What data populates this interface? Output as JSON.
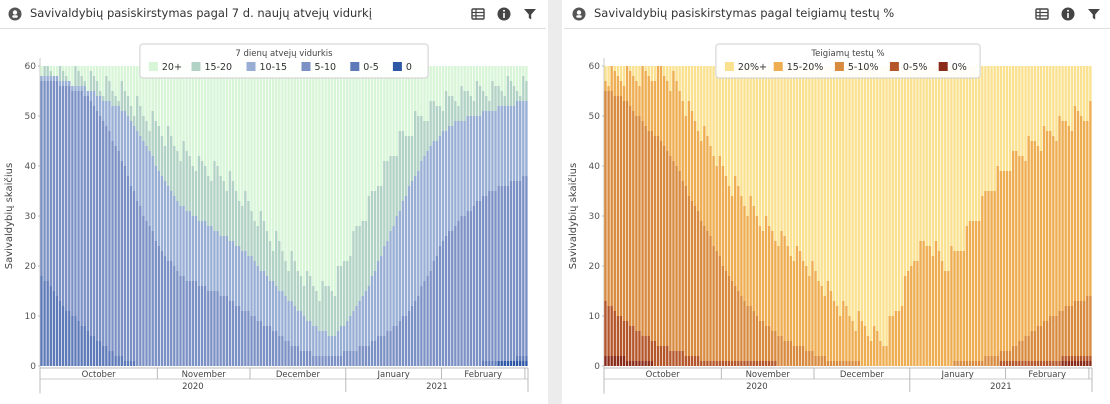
{
  "colors": {
    "vidurkis": [
      "#d8f5d8",
      "#b1d2c4",
      "#98aed4",
      "#7b90c4",
      "#5f7ab8",
      "#2e57a5"
    ],
    "teigiamu": [
      "#fae18f",
      "#eead50",
      "#d88a3e",
      "#b4552a",
      "#8a2a18"
    ]
  },
  "icons": {
    "section": "shield-icon",
    "table": "table-icon",
    "info": "info-icon",
    "filter": "filter-icon"
  },
  "panels": [
    {
      "title": "Savivaldybių pasiskirstymas pagal 7 d. naujų atvejų vidurkį",
      "colors_key": "vidurkis",
      "chart_data": {
        "type": "bar",
        "stacked": true,
        "ylabel": "Savivaldybių skaičius",
        "ylim": [
          0,
          60
        ],
        "yticks": [
          0,
          10,
          20,
          30,
          40,
          50,
          60
        ],
        "legend": {
          "title": "7 dienų atvejų vidurkis",
          "placement": "top",
          "labels": [
            "20+",
            "15-20",
            "10-15",
            "5-10",
            "0-5",
            "0"
          ]
        },
        "x_range": [
          "2020-09-24",
          "2021-02-28"
        ],
        "month_labels": [
          "October",
          "November",
          "December",
          "January",
          "February"
        ],
        "year_labels": [
          "2020",
          "2021"
        ],
        "series_order": [
          "0",
          "0-5",
          "5-10",
          "10-15",
          "15-20",
          "20+"
        ],
        "cumulative_levels_sampled": [
          {
            "date": "2020-09-24",
            "levels": [
              0,
              18,
              57,
              58,
              59,
              60
            ]
          },
          {
            "date": "2020-09-27",
            "levels": [
              0,
              16,
              57,
              58,
              59,
              60
            ]
          },
          {
            "date": "2020-10-01",
            "levels": [
              0,
              12,
              56,
              57,
              58,
              60
            ]
          },
          {
            "date": "2020-10-06",
            "levels": [
              0,
              9,
              55,
              56,
              58,
              60
            ]
          },
          {
            "date": "2020-10-10",
            "levels": [
              0,
              6,
              53,
              55,
              57,
              60
            ]
          },
          {
            "date": "2020-10-14",
            "levels": [
              0,
              4,
              49,
              53,
              56,
              60
            ]
          },
          {
            "date": "2020-10-18",
            "levels": [
              0,
              2,
              44,
              52,
              55,
              60
            ]
          },
          {
            "date": "2020-10-22",
            "levels": [
              0,
              1,
              38,
              50,
              54,
              60
            ]
          },
          {
            "date": "2020-10-27",
            "levels": [
              0,
              0,
              30,
              45,
              50,
              60
            ]
          },
          {
            "date": "2020-11-02",
            "levels": [
              0,
              0,
              23,
              38,
              47,
              60
            ]
          },
          {
            "date": "2020-11-08",
            "levels": [
              0,
              0,
              18,
              32,
              43,
              60
            ]
          },
          {
            "date": "2020-11-15",
            "levels": [
              0,
              0,
              16,
              29,
              40,
              60
            ]
          },
          {
            "date": "2020-11-22",
            "levels": [
              0,
              0,
              14,
              26,
              38,
              60
            ]
          },
          {
            "date": "2020-11-29",
            "levels": [
              0,
              0,
              11,
              23,
              33,
              60
            ]
          },
          {
            "date": "2020-12-06",
            "levels": [
              0,
              0,
              8,
              18,
              27,
              60
            ]
          },
          {
            "date": "2020-12-12",
            "levels": [
              0,
              0,
              5,
              14,
              22,
              60
            ]
          },
          {
            "date": "2020-12-18",
            "levels": [
              0,
              0,
              3,
              10,
              18,
              60
            ]
          },
          {
            "date": "2020-12-23",
            "levels": [
              0,
              0,
              2,
              7,
              15,
              60
            ]
          },
          {
            "date": "2020-12-28",
            "levels": [
              0,
              0,
              2,
              6,
              16,
              60
            ]
          },
          {
            "date": "2021-01-02",
            "levels": [
              0,
              0,
              3,
              10,
              24,
              60
            ]
          },
          {
            "date": "2021-01-07",
            "levels": [
              0,
              0,
              4,
              15,
              31,
              60
            ]
          },
          {
            "date": "2021-01-12",
            "levels": [
              0,
              0,
              6,
              22,
              38,
              60
            ]
          },
          {
            "date": "2021-01-17",
            "levels": [
              0,
              0,
              8,
              30,
              44,
              60
            ]
          },
          {
            "date": "2021-01-22",
            "levels": [
              0,
              0,
              12,
              37,
              48,
              60
            ]
          },
          {
            "date": "2021-01-27",
            "levels": [
              0,
              0,
              18,
              43,
              51,
              60
            ]
          },
          {
            "date": "2021-02-01",
            "levels": [
              0,
              0,
              25,
              47,
              53,
              60
            ]
          },
          {
            "date": "2021-02-06",
            "levels": [
              0,
              0,
              29,
              49,
              54,
              60
            ]
          },
          {
            "date": "2021-02-11",
            "levels": [
              0,
              0,
              32,
              50,
              55,
              60
            ]
          },
          {
            "date": "2021-02-16",
            "levels": [
              0,
              1,
              35,
              51,
              55,
              60
            ]
          },
          {
            "date": "2021-02-21",
            "levels": [
              1,
              1,
              36,
              52,
              56,
              60
            ]
          },
          {
            "date": "2021-02-28",
            "levels": [
              1,
              2,
              38,
              53,
              56,
              60
            ]
          }
        ]
      }
    },
    {
      "title": "Savivaldybių pasiskirstymas pagal teigiamų testų %",
      "colors_key": "teigiamu",
      "chart_data": {
        "type": "bar",
        "stacked": true,
        "ylabel": "Savivaldybių skaičius",
        "ylim": [
          0,
          60
        ],
        "yticks": [
          0,
          10,
          20,
          30,
          40,
          50,
          60
        ],
        "legend": {
          "title": "Teigiamų testų %",
          "placement": "top",
          "labels": [
            "20%+",
            "15-20%",
            "5-10%",
            "0-5%",
            "0%"
          ]
        },
        "x_range": [
          "2020-09-24",
          "2021-02-28"
        ],
        "month_labels": [
          "October",
          "November",
          "December",
          "January",
          "February"
        ],
        "year_labels": [
          "2020",
          "2021"
        ],
        "series_order": [
          "0%",
          "0-5%",
          "5-10%",
          "15-20%",
          "20%+"
        ],
        "cumulative_levels_sampled": [
          {
            "date": "2020-09-24",
            "levels": [
              2,
              13,
              55,
              58,
              60
            ]
          },
          {
            "date": "2020-09-28",
            "levels": [
              2,
              10,
              54,
              58,
              60
            ]
          },
          {
            "date": "2020-10-02",
            "levels": [
              1,
              8,
              52,
              58,
              60
            ]
          },
          {
            "date": "2020-10-07",
            "levels": [
              1,
              6,
              48,
              58,
              60
            ]
          },
          {
            "date": "2020-10-12",
            "levels": [
              0,
              4,
              45,
              59,
              60
            ]
          },
          {
            "date": "2020-10-17",
            "levels": [
              0,
              3,
              40,
              56,
              60
            ]
          },
          {
            "date": "2020-10-22",
            "levels": [
              0,
              2,
              33,
              50,
              60
            ]
          },
          {
            "date": "2020-10-27",
            "levels": [
              0,
              1,
              27,
              45,
              60
            ]
          },
          {
            "date": "2020-11-02",
            "levels": [
              0,
              1,
              19,
              38,
              60
            ]
          },
          {
            "date": "2020-11-08",
            "levels": [
              0,
              1,
              13,
              33,
              60
            ]
          },
          {
            "date": "2020-11-15",
            "levels": [
              0,
              1,
              8,
              28,
              60
            ]
          },
          {
            "date": "2020-11-22",
            "levels": [
              0,
              0,
              5,
              24,
              60
            ]
          },
          {
            "date": "2020-11-29",
            "levels": [
              0,
              0,
              3,
              20,
              60
            ]
          },
          {
            "date": "2020-12-06",
            "levels": [
              0,
              0,
              1,
              14,
              60
            ]
          },
          {
            "date": "2020-12-12",
            "levels": [
              0,
              0,
              1,
              10,
              60
            ]
          },
          {
            "date": "2020-12-18",
            "levels": [
              0,
              0,
              0,
              7,
              60
            ]
          },
          {
            "date": "2020-12-23",
            "levels": [
              0,
              0,
              0,
              5,
              60
            ]
          },
          {
            "date": "2020-12-28",
            "levels": [
              0,
              0,
              0,
              12,
              60
            ]
          },
          {
            "date": "2021-01-02",
            "levels": [
              0,
              0,
              0,
              22,
              60
            ]
          },
          {
            "date": "2021-01-07",
            "levels": [
              0,
              0,
              0,
              25,
              60
            ]
          },
          {
            "date": "2021-01-12",
            "levels": [
              0,
              0,
              0,
              20,
              60
            ]
          },
          {
            "date": "2021-01-17",
            "levels": [
              0,
              0,
              1,
              24,
              60
            ]
          },
          {
            "date": "2021-01-22",
            "levels": [
              0,
              0,
              1,
              30,
              60
            ]
          },
          {
            "date": "2021-01-27",
            "levels": [
              0,
              0,
              2,
              36,
              60
            ]
          },
          {
            "date": "2021-02-01",
            "levels": [
              0,
              1,
              3,
              40,
              60
            ]
          },
          {
            "date": "2021-02-06",
            "levels": [
              0,
              1,
              5,
              43,
              60
            ]
          },
          {
            "date": "2021-02-11",
            "levels": [
              0,
              1,
              8,
              45,
              60
            ]
          },
          {
            "date": "2021-02-16",
            "levels": [
              0,
              1,
              10,
              47,
              60
            ]
          },
          {
            "date": "2021-02-21",
            "levels": [
              1,
              2,
              12,
              49,
              60
            ]
          },
          {
            "date": "2021-02-28",
            "levels": [
              1,
              2,
              14,
              51,
              60
            ]
          }
        ]
      }
    }
  ]
}
